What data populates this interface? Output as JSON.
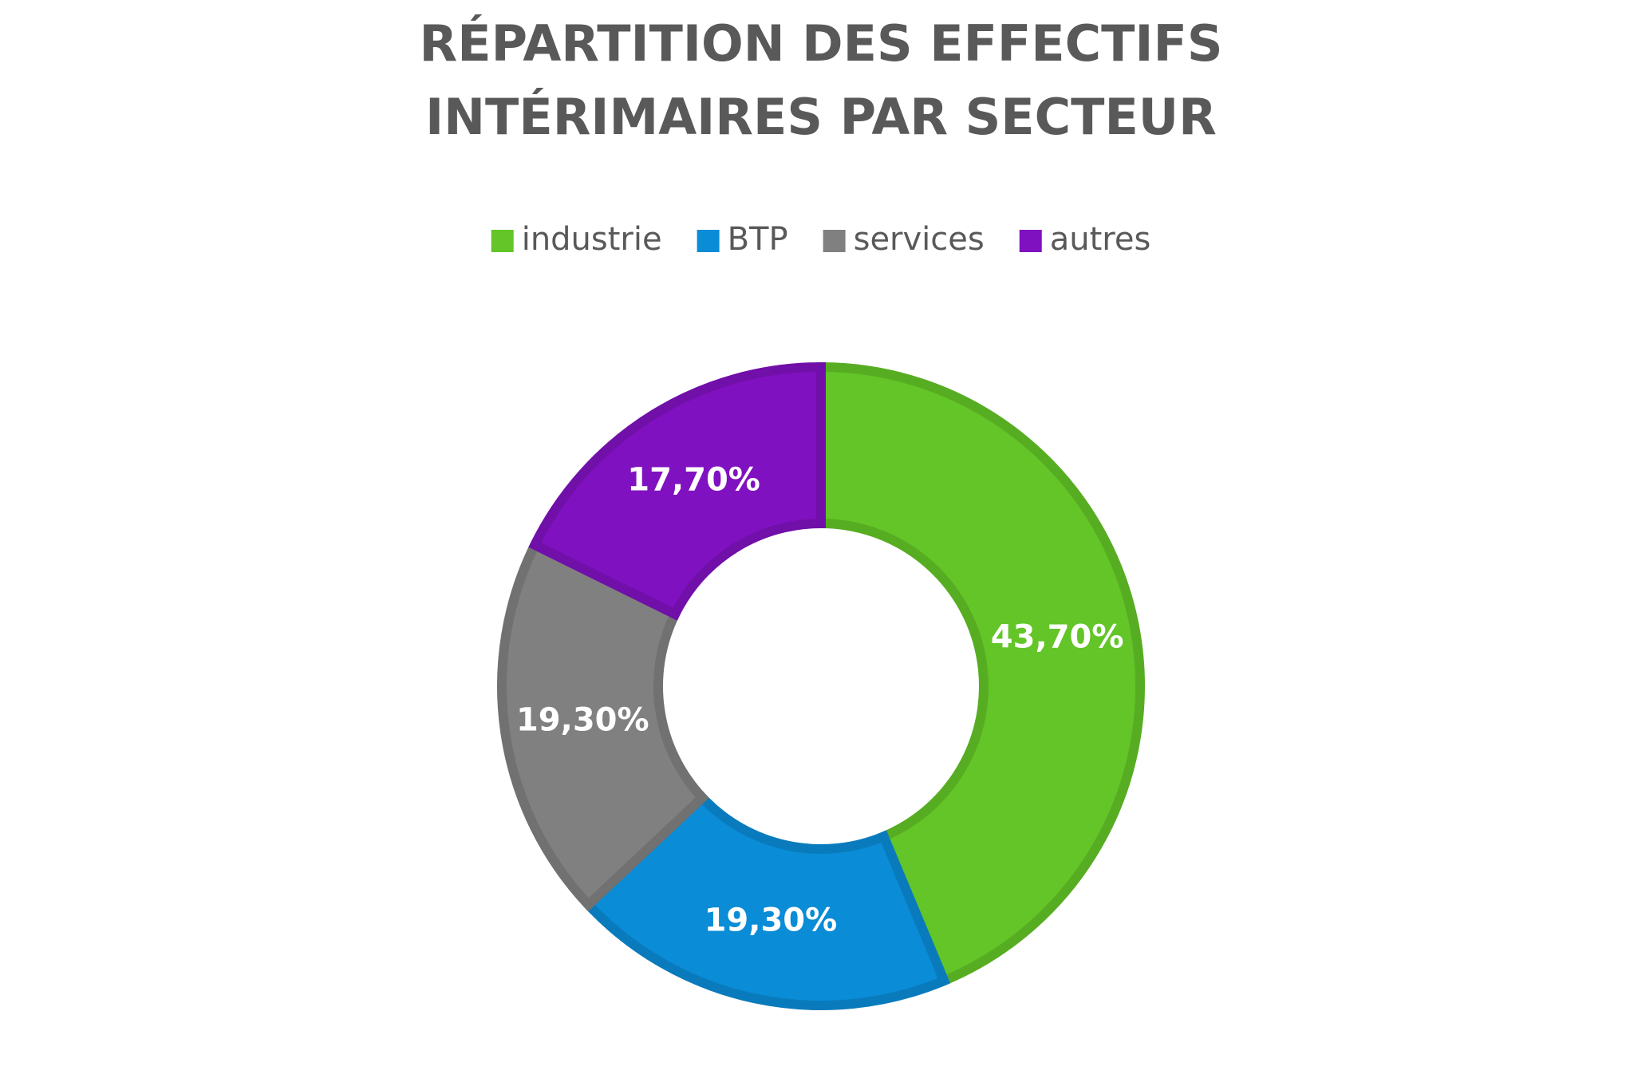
{
  "chart_data": {
    "type": "pie",
    "title": [
      "RÉPARTITION DES EFFECTIFS",
      "INTÉRIMAIRES PAR SECTEUR"
    ],
    "categories": [
      "industrie",
      "BTP",
      "services",
      "autres"
    ],
    "values": [
      43.7,
      19.3,
      19.3,
      17.7
    ],
    "value_labels": [
      "43,70%",
      "19,30%",
      "19,30%",
      "17,70%"
    ],
    "colors": [
      "#63c527",
      "#0a8cd6",
      "#808080",
      "#8011c0"
    ],
    "legend": "top"
  }
}
